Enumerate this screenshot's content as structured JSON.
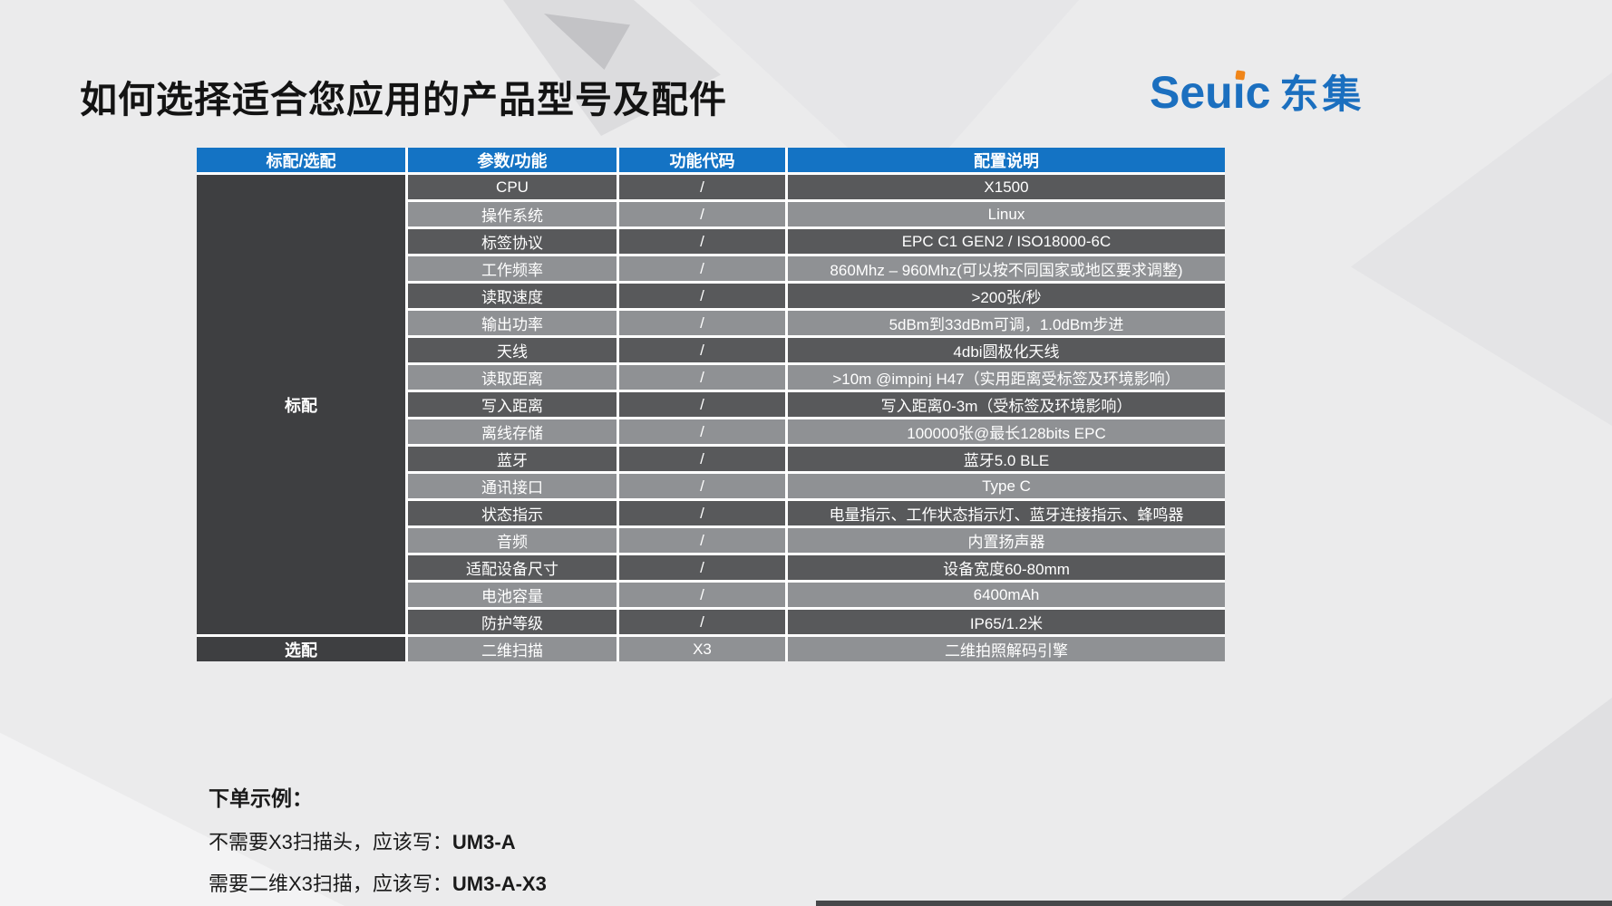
{
  "page": {
    "title": "如何选择适合您应用的产品型号及配件",
    "logo": {
      "text": "Seuic",
      "suffix": "东集",
      "brand_color": "#1b6fbf",
      "dot_color": "#f08519"
    }
  },
  "table": {
    "headers": [
      "标配/选配",
      "参数/功能",
      "功能代码",
      "配置说明"
    ],
    "standard_label": "标配",
    "optional_label": "选配",
    "colors": {
      "header_bg": "#1473c4",
      "row_dark": "#58595b",
      "row_light": "#8f9194",
      "group_cell_bg": "#3e3f41",
      "text": "#ffffff"
    },
    "rows": [
      {
        "param": "CPU",
        "code": "/",
        "desc": "X1500"
      },
      {
        "param": "操作系统",
        "code": "/",
        "desc": "Linux"
      },
      {
        "param": "标签协议",
        "code": "/",
        "desc": "EPC C1 GEN2 / ISO18000-6C"
      },
      {
        "param": "工作频率",
        "code": "/",
        "desc": "860Mhz – 960Mhz(可以按不同国家或地区要求调整)"
      },
      {
        "param": "读取速度",
        "code": "/",
        "desc": ">200张/秒"
      },
      {
        "param": "输出功率",
        "code": "/",
        "desc": "5dBm到33dBm可调，1.0dBm步进"
      },
      {
        "param": "天线",
        "code": "/",
        "desc": "4dbi圆极化天线"
      },
      {
        "param": "读取距离",
        "code": "/",
        "desc": ">10m @impinj H47（实用距离受标签及环境影响）"
      },
      {
        "param": "写入距离",
        "code": "/",
        "desc": "写入距离0-3m（受标签及环境影响）"
      },
      {
        "param": "离线存储",
        "code": "/",
        "desc": "100000张@最长128bits EPC"
      },
      {
        "param": "蓝牙",
        "code": "/",
        "desc": "蓝牙5.0 BLE"
      },
      {
        "param": "通讯接口",
        "code": "/",
        "desc": "Type C"
      },
      {
        "param": "状态指示",
        "code": "/",
        "desc": "电量指示、工作状态指示灯、蓝牙连接指示、蜂鸣器"
      },
      {
        "param": "音频",
        "code": "/",
        "desc": "内置扬声器"
      },
      {
        "param": "适配设备尺寸",
        "code": "/",
        "desc": "设备宽度60-80mm"
      },
      {
        "param": "电池容量",
        "code": "/",
        "desc": "6400mAh"
      },
      {
        "param": "防护等级",
        "code": "/",
        "desc": "IP65/1.2米"
      }
    ],
    "optional_row": {
      "param": "二维扫描",
      "code": "X3",
      "desc": "二维拍照解码引擎"
    }
  },
  "notes": {
    "heading": "下单示例：",
    "lines": [
      {
        "prefix": "不需要X3扫描头，应该写：",
        "model": "UM3-A"
      },
      {
        "prefix": "需要二维X3扫描，应该写：",
        "model": "UM3-A-X3"
      }
    ]
  }
}
